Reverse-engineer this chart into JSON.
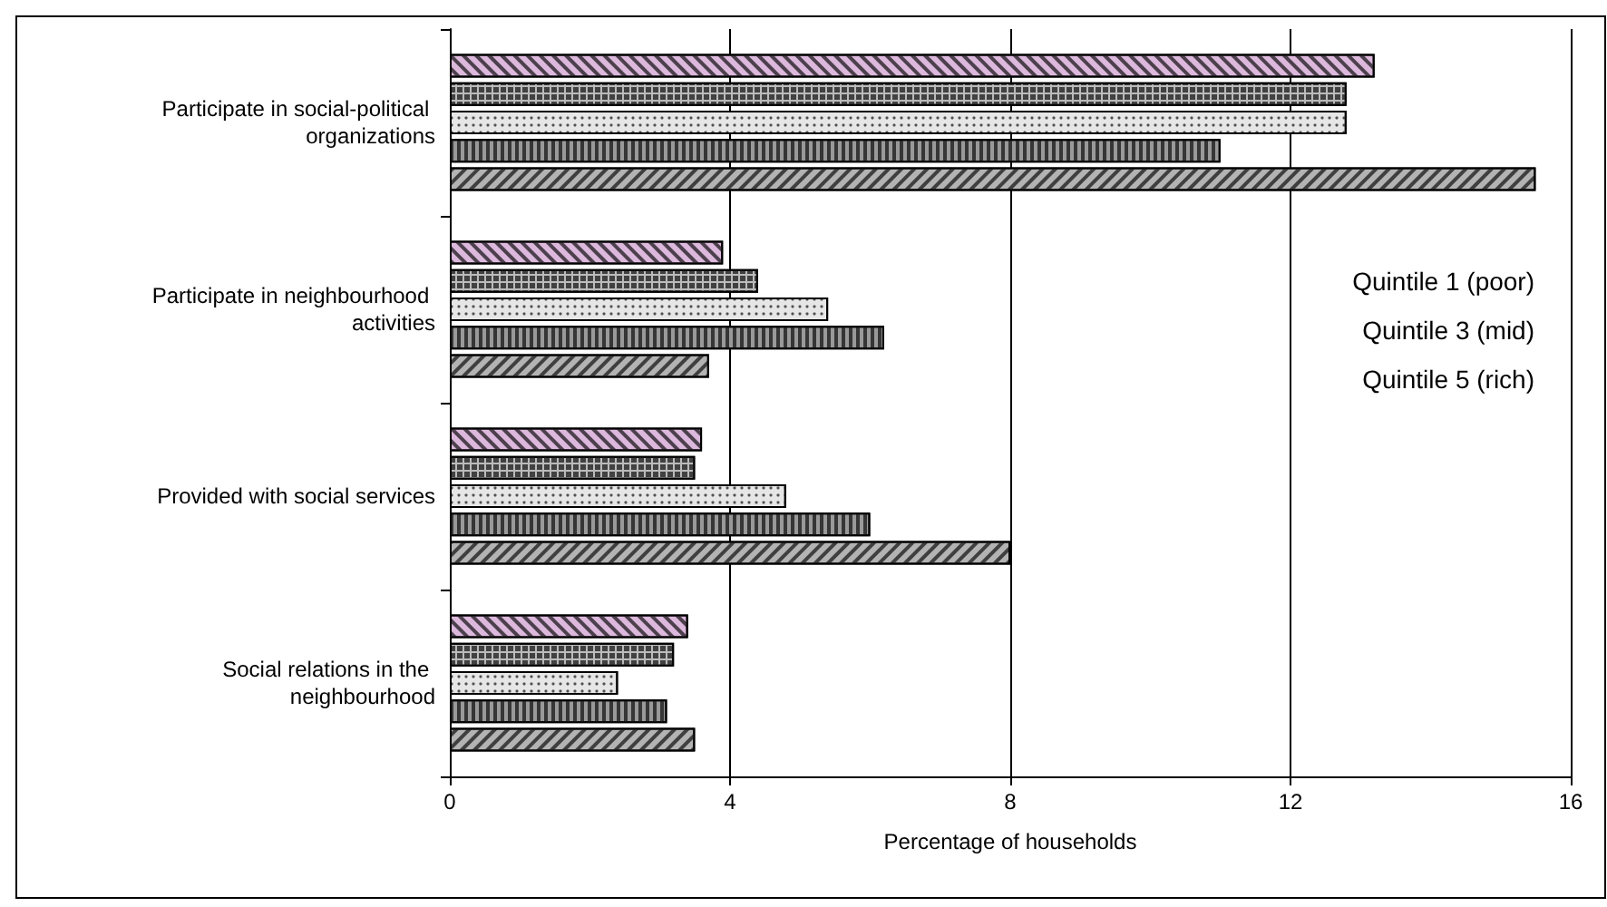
{
  "chart_data": {
    "type": "bar",
    "orientation": "horizontal",
    "xlabel": "Percentage of households",
    "categories": [
      "Participate in social-political organizations",
      "Participate in neighbourhood activities",
      "Provided with social services",
      "Social relations in the neighbourhood"
    ],
    "series": [
      {
        "color": "#dcb8dc",
        "values": [
          13.2,
          3.9,
          3.6,
          3.4
        ]
      },
      {
        "color": "#bbbbbb",
        "values": [
          12.8,
          4.4,
          3.5,
          3.2
        ]
      },
      {
        "color": "#e6e6e6",
        "values": [
          12.8,
          5.4,
          4.8,
          2.4
        ]
      },
      {
        "color": "#999999",
        "values": [
          11.0,
          6.2,
          6.0,
          3.1
        ]
      },
      {
        "color": "#b3b3b3",
        "values": [
          15.5,
          3.7,
          8.0,
          3.5
        ]
      }
    ],
    "xlim": [
      0,
      16
    ],
    "xticks": [
      0,
      4,
      8,
      12,
      16
    ],
    "grid": "x",
    "annotations": [
      "Quintile 1 (poor)",
      "Quintile 3 (mid)",
      "Quintile 5 (rich)"
    ]
  }
}
